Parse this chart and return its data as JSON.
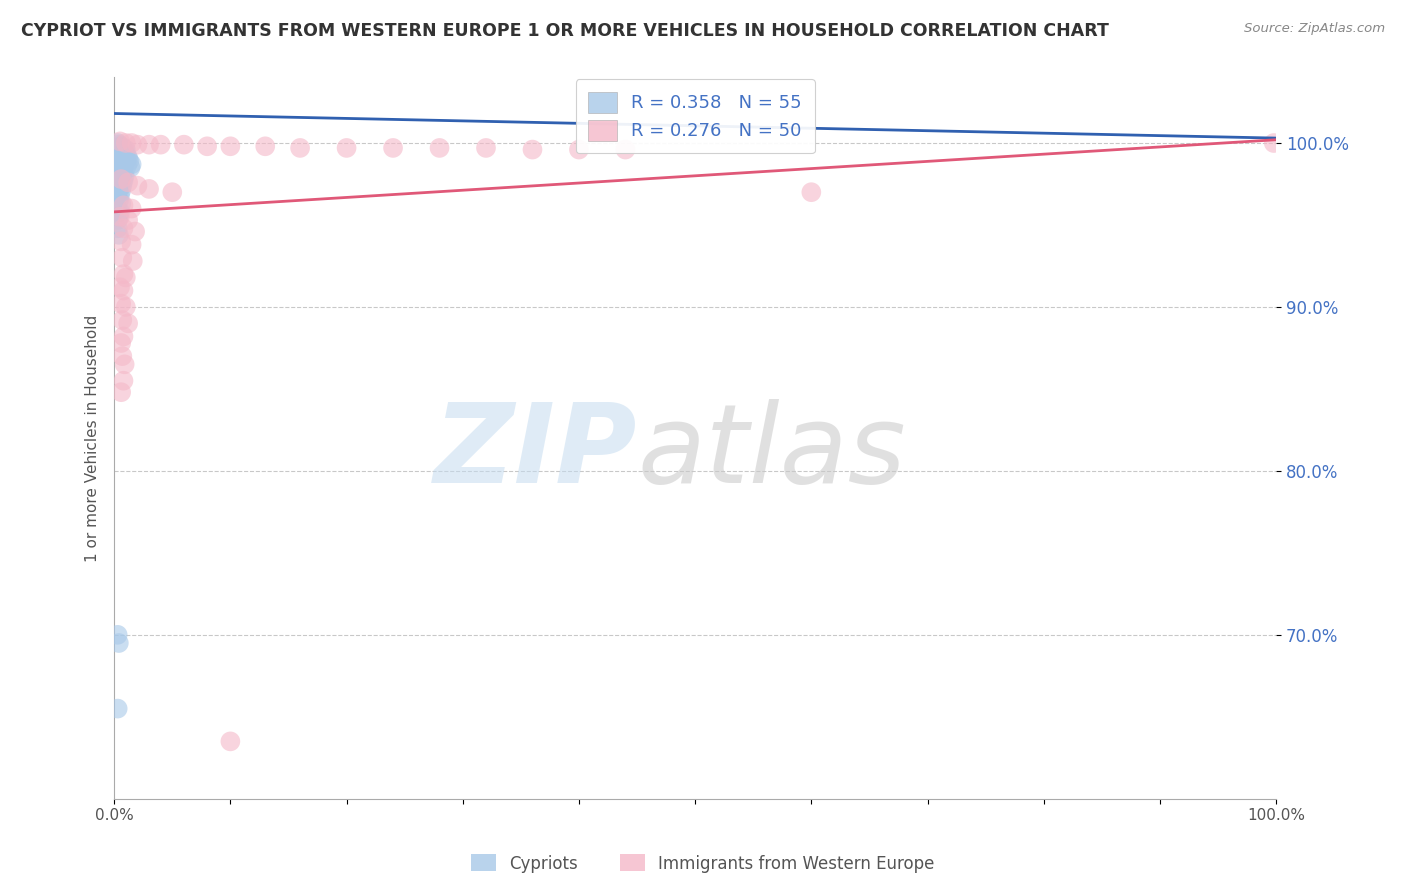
{
  "title": "CYPRIOT VS IMMIGRANTS FROM WESTERN EUROPE 1 OR MORE VEHICLES IN HOUSEHOLD CORRELATION CHART",
  "source": "Source: ZipAtlas.com",
  "ylabel": "1 or more Vehicles in Household",
  "xlim": [
    0.0,
    1.0
  ],
  "ylim": [
    0.6,
    1.04
  ],
  "xticks": [
    0.0,
    0.1,
    0.2,
    0.3,
    0.4,
    0.5,
    0.6,
    0.7,
    0.8,
    0.9,
    1.0
  ],
  "xtick_labels": [
    "0.0%",
    "",
    "",
    "",
    "",
    "",
    "",
    "",
    "",
    "",
    "100.0%"
  ],
  "yticks": [
    0.7,
    0.8,
    0.9,
    1.0
  ],
  "ytick_labels": [
    "70.0%",
    "80.0%",
    "90.0%",
    "100.0%"
  ],
  "blue_color": "#a8c8e8",
  "pink_color": "#f4b8c8",
  "blue_line_color": "#3060b0",
  "pink_line_color": "#e05878",
  "R_blue": 0.358,
  "N_blue": 55,
  "R_pink": 0.276,
  "N_pink": 50,
  "legend_label_blue": "Cypriots",
  "legend_label_pink": "Immigrants from Western Europe",
  "watermark_zip": "ZIP",
  "watermark_atlas": "atlas",
  "blue_line": [
    [
      0.0,
      1.018
    ],
    [
      1.0,
      1.003
    ]
  ],
  "pink_line": [
    [
      0.0,
      0.958
    ],
    [
      1.0,
      1.002
    ]
  ],
  "blue_dots": [
    [
      0.003,
      1.0
    ],
    [
      0.004,
      0.999
    ],
    [
      0.005,
      0.998
    ],
    [
      0.006,
      0.998
    ],
    [
      0.007,
      0.997
    ],
    [
      0.008,
      0.997
    ],
    [
      0.009,
      0.996
    ],
    [
      0.01,
      0.996
    ],
    [
      0.004,
      0.995
    ],
    [
      0.006,
      0.995
    ],
    [
      0.008,
      0.994
    ],
    [
      0.005,
      0.994
    ],
    [
      0.007,
      0.993
    ],
    [
      0.009,
      0.993
    ],
    [
      0.011,
      0.992
    ],
    [
      0.006,
      0.992
    ],
    [
      0.008,
      0.991
    ],
    [
      0.012,
      0.991
    ],
    [
      0.005,
      0.99
    ],
    [
      0.01,
      0.99
    ],
    [
      0.007,
      0.989
    ],
    [
      0.013,
      0.989
    ],
    [
      0.004,
      0.988
    ],
    [
      0.009,
      0.988
    ],
    [
      0.015,
      0.987
    ],
    [
      0.006,
      0.987
    ],
    [
      0.011,
      0.986
    ],
    [
      0.005,
      0.986
    ],
    [
      0.008,
      0.985
    ],
    [
      0.014,
      0.985
    ],
    [
      0.003,
      0.983
    ],
    [
      0.005,
      0.982
    ],
    [
      0.007,
      0.981
    ],
    [
      0.009,
      0.98
    ],
    [
      0.004,
      0.979
    ],
    [
      0.006,
      0.978
    ],
    [
      0.008,
      0.977
    ],
    [
      0.003,
      0.976
    ],
    [
      0.005,
      0.975
    ],
    [
      0.007,
      0.974
    ],
    [
      0.004,
      0.972
    ],
    [
      0.006,
      0.971
    ],
    [
      0.003,
      0.969
    ],
    [
      0.005,
      0.968
    ],
    [
      0.004,
      0.965
    ],
    [
      0.006,
      0.963
    ],
    [
      0.003,
      0.96
    ],
    [
      0.005,
      0.958
    ],
    [
      0.004,
      0.955
    ],
    [
      0.003,
      0.953
    ],
    [
      0.003,
      0.948
    ],
    [
      0.004,
      0.944
    ],
    [
      0.003,
      0.7
    ],
    [
      0.004,
      0.695
    ],
    [
      0.003,
      0.655
    ]
  ],
  "pink_dots": [
    [
      0.005,
      1.001
    ],
    [
      0.01,
      1.0
    ],
    [
      0.015,
      1.0
    ],
    [
      0.02,
      0.999
    ],
    [
      0.03,
      0.999
    ],
    [
      0.04,
      0.999
    ],
    [
      0.06,
      0.999
    ],
    [
      0.08,
      0.998
    ],
    [
      0.1,
      0.998
    ],
    [
      0.13,
      0.998
    ],
    [
      0.16,
      0.997
    ],
    [
      0.2,
      0.997
    ],
    [
      0.24,
      0.997
    ],
    [
      0.28,
      0.997
    ],
    [
      0.32,
      0.997
    ],
    [
      0.36,
      0.996
    ],
    [
      0.4,
      0.996
    ],
    [
      0.44,
      0.996
    ],
    [
      0.998,
      1.0
    ],
    [
      0.006,
      0.978
    ],
    [
      0.012,
      0.976
    ],
    [
      0.02,
      0.974
    ],
    [
      0.03,
      0.972
    ],
    [
      0.05,
      0.97
    ],
    [
      0.6,
      0.97
    ],
    [
      0.008,
      0.962
    ],
    [
      0.015,
      0.96
    ],
    [
      0.005,
      0.955
    ],
    [
      0.012,
      0.953
    ],
    [
      0.008,
      0.948
    ],
    [
      0.018,
      0.946
    ],
    [
      0.006,
      0.94
    ],
    [
      0.015,
      0.938
    ],
    [
      0.007,
      0.93
    ],
    [
      0.016,
      0.928
    ],
    [
      0.008,
      0.92
    ],
    [
      0.01,
      0.918
    ],
    [
      0.005,
      0.912
    ],
    [
      0.008,
      0.91
    ],
    [
      0.006,
      0.902
    ],
    [
      0.01,
      0.9
    ],
    [
      0.007,
      0.892
    ],
    [
      0.012,
      0.89
    ],
    [
      0.008,
      0.882
    ],
    [
      0.006,
      0.878
    ],
    [
      0.007,
      0.87
    ],
    [
      0.009,
      0.865
    ],
    [
      0.008,
      0.855
    ],
    [
      0.006,
      0.848
    ],
    [
      0.1,
      0.635
    ]
  ]
}
